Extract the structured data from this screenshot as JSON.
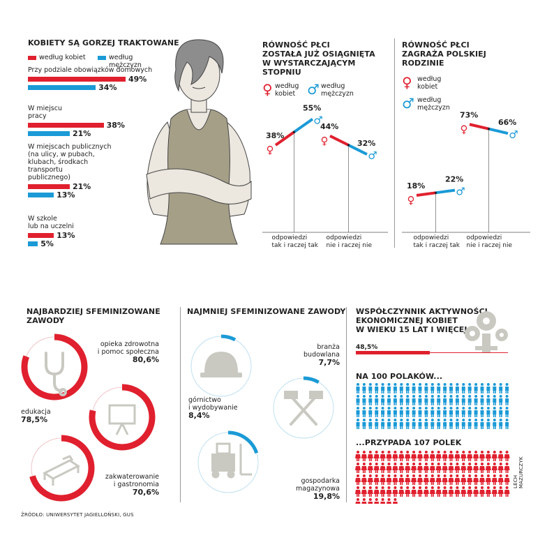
{
  "colors": {
    "kobiety": "#e0202e",
    "mezczyzni": "#1b9ad6",
    "grey": "#c9c9c2",
    "dark": "#222222"
  },
  "chart_data": [
    {
      "type": "bar",
      "title": "KOBIETY SĄ GORZEJ TRAKTOWANE",
      "legend": [
        "według kobiet",
        "według mężczyzn"
      ],
      "categories": [
        {
          "label": "Przy podziale obowiązków domowych",
          "kobiety": 49,
          "mezczyzni": 34,
          "kobiety_label": "49%",
          "mezczyzni_label": "34%"
        },
        {
          "label": "W miejscu\npracy",
          "kobiety": 38,
          "mezczyzni": 21,
          "kobiety_label": "38%",
          "mezczyzni_label": "21%"
        },
        {
          "label": "W miejscach publicznych\n(na ulicy, w pubach,\nklubach, środkach\ntransportu\npublicznego)",
          "kobiety": 21,
          "mezczyzni": 13,
          "kobiety_label": "21%",
          "mezczyzni_label": "13%"
        },
        {
          "label": "W szkole\nlub na uczelni",
          "kobiety": 13,
          "mezczyzni": 5,
          "kobiety_label": "13%",
          "mezczyzni_label": "5%"
        }
      ]
    },
    {
      "type": "line",
      "title": "RÓWNOŚĆ PŁCI\nZOSTAŁA JUŻ OSIĄGNIĘTA\nW WYSTARCZAJĄCYM\nSTOPNIU",
      "legend": [
        "według\nkobiet",
        "według\nmężczyzn"
      ],
      "groups": [
        {
          "label": "odpowiedzi\ntak i raczej tak",
          "kobiety": 38,
          "mezczyzni": 55,
          "kobiety_label": "38%",
          "mezczyzni_label": "55%"
        },
        {
          "label": "odpowiedzi\nnie i raczej nie",
          "kobiety": 44,
          "mezczyzni": 32,
          "kobiety_label": "44%",
          "mezczyzni_label": "32%"
        }
      ]
    },
    {
      "type": "line",
      "title": "RÓWNOŚĆ PŁCI\nZAGRAŻA POLSKIEJ\nRODZINIE",
      "legend": [
        "według\nkobiet",
        "według\nmężczyzn"
      ],
      "groups": [
        {
          "label": "odpowiedzi\ntak i raczej tak",
          "kobiety": 18,
          "mezczyzni": 22,
          "kobiety_label": "18%",
          "mezczyzni_label": "22%"
        },
        {
          "label": "odpowiedzi\nnie i raczej nie",
          "kobiety": 73,
          "mezczyzni": 66,
          "kobiety_label": "73%",
          "mezczyzni_label": "66%"
        }
      ]
    },
    {
      "type": "pie",
      "title": "NAJBARDZIEJ SFEMINIZOWANE\nZAWODY",
      "items": [
        {
          "label": "opieka zdrowotna\ni pomoc społeczna",
          "value": 80.6,
          "value_label": "80,6%",
          "icon": "stethoscope-icon"
        },
        {
          "label": "edukacja",
          "value": 78.5,
          "value_label": "78,5%",
          "icon": "blackboard-icon"
        },
        {
          "label": "zakwaterowanie\ni gastronomia",
          "value": 70.6,
          "value_label": "70,6%",
          "icon": "bed-icon"
        }
      ]
    },
    {
      "type": "pie",
      "title": "NAJMNIEJ SFEMINIZOWANE ZAWODY",
      "items": [
        {
          "label": "branża\nbudowlana",
          "value": 7.7,
          "value_label": "7,7%",
          "icon": "helmet-icon"
        },
        {
          "label": "górnictwo\ni wydobywanie",
          "value": 8.4,
          "value_label": "8,4%",
          "icon": "hammers-icon"
        },
        {
          "label": "gospodarka\nmagazynowa",
          "value": 19.8,
          "value_label": "19,8%",
          "icon": "forklift-icon"
        }
      ]
    },
    {
      "type": "bar",
      "title": "WSPÓŁCZYNNIK AKTYWNOŚCI\nEKONOMICZNEJ KOBIET\nW WIEKU 15 LAT I WIĘCEJ",
      "value": 48.5,
      "value_label": "48,5%",
      "men_label": "NA 100 POLAKÓW...",
      "men_count": 100,
      "women_label": "...PRZYPADA 107 POLEK",
      "women_count": 107
    }
  ],
  "source": "ŹRÓDŁO: UNIWERSYTET JAGIELLOŃSKI, GUS",
  "author": "LECH MAZURCZYK"
}
